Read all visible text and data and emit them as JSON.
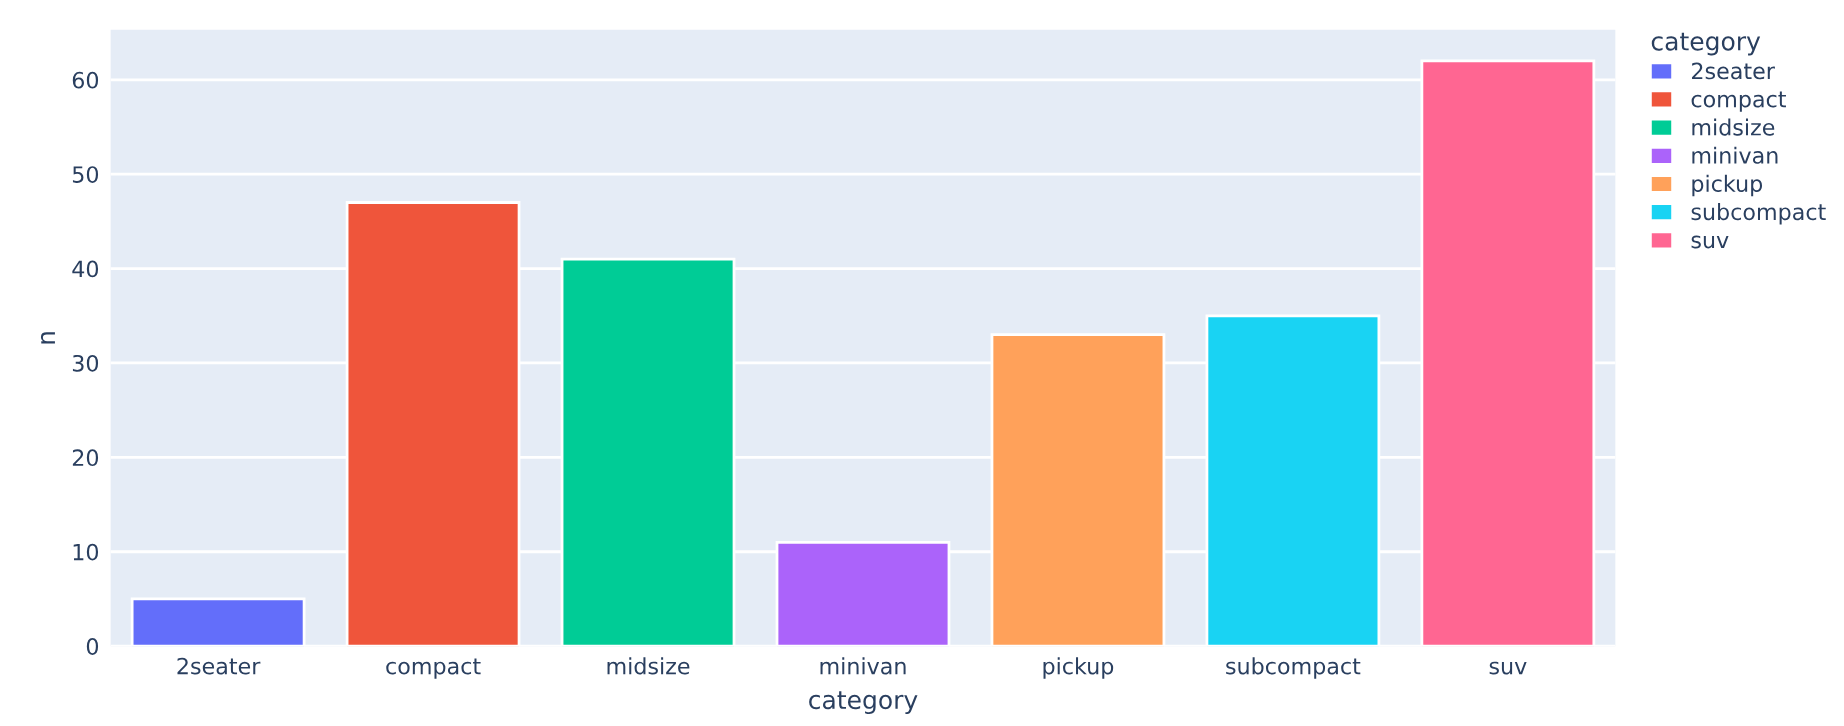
{
  "chart_data": {
    "type": "bar",
    "xlabel": "category",
    "ylabel": "n",
    "legend_title": "category",
    "categories": [
      "2seater",
      "compact",
      "midsize",
      "minivan",
      "pickup",
      "subcompact",
      "suv"
    ],
    "series": [
      {
        "name": "2seater",
        "color": "#636efa",
        "values": [
          5,
          null,
          null,
          null,
          null,
          null,
          null
        ]
      },
      {
        "name": "compact",
        "color": "#ef553b",
        "values": [
          null,
          47,
          null,
          null,
          null,
          null,
          null
        ]
      },
      {
        "name": "midsize",
        "color": "#00cc96",
        "values": [
          null,
          null,
          41,
          null,
          null,
          null,
          null
        ]
      },
      {
        "name": "minivan",
        "color": "#ab63fa",
        "values": [
          null,
          null,
          null,
          11,
          null,
          null,
          null
        ]
      },
      {
        "name": "pickup",
        "color": "#ffa15a",
        "values": [
          null,
          null,
          null,
          null,
          33,
          null,
          null
        ]
      },
      {
        "name": "subcompact",
        "color": "#19d3f3",
        "values": [
          null,
          null,
          null,
          null,
          null,
          35,
          null
        ]
      },
      {
        "name": "suv",
        "color": "#ff6692",
        "values": [
          null,
          null,
          null,
          null,
          null,
          null,
          62
        ]
      }
    ],
    "ylim": [
      0,
      65.3
    ],
    "yticks": [
      0,
      10,
      20,
      30,
      40,
      50,
      60
    ],
    "grid": "y",
    "legend": "top right"
  }
}
